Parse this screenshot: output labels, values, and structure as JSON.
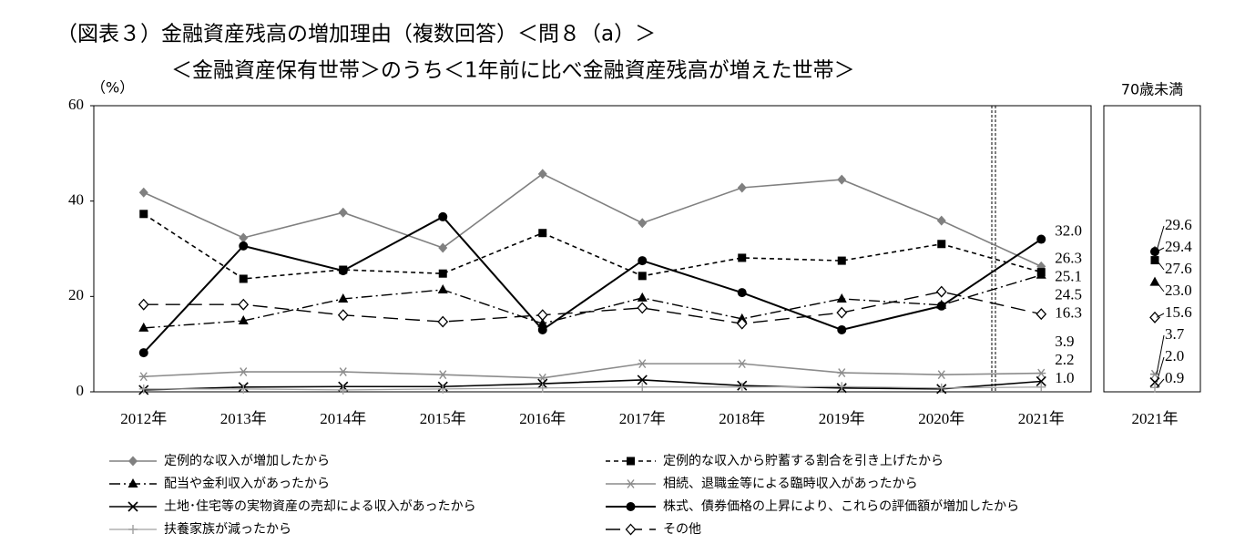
{
  "chart_data": {
    "type": "line",
    "title": "（図表３）金融資産残高の増加理由（複数回答）＜問８（a）＞",
    "subtitle": "＜金融資産保有世帯＞のうち＜1年前に比べ金融資産残高が増えた世帯＞",
    "y_label": "（%）",
    "categories": [
      "2012年",
      "2013年",
      "2014年",
      "2015年",
      "2016年",
      "2017年",
      "2018年",
      "2019年",
      "2020年",
      "2021年"
    ],
    "sub_panel_title": "70歳未満",
    "sub_categories": [
      "2021年"
    ],
    "ylim": [
      0,
      60
    ],
    "yticks": [
      0,
      20,
      40,
      60
    ],
    "grid": false,
    "series": [
      {
        "name": "定例的な収入が増加したから",
        "color": "#808080",
        "dash": "",
        "width": 1.6,
        "marker": "diamond",
        "values": [
          41.8,
          32.3,
          37.6,
          30.2,
          45.7,
          35.4,
          42.8,
          44.5,
          35.9,
          26.3
        ],
        "value_labels": [
          null,
          null,
          null,
          null,
          null,
          null,
          null,
          null,
          null,
          "26.3"
        ],
        "sub_values": [
          29.6
        ],
        "sub_value_labels": [
          "29.6"
        ]
      },
      {
        "name": "定例的な収入から貯蓄する割合を引き上げたから",
        "color": "#000000",
        "dash": "5,4",
        "width": 1.6,
        "marker": "square",
        "values": [
          37.3,
          23.7,
          25.6,
          24.8,
          33.3,
          24.3,
          28.1,
          27.5,
          31.0,
          25.1
        ],
        "value_labels": [
          null,
          null,
          null,
          null,
          null,
          null,
          null,
          null,
          null,
          "25.1"
        ],
        "sub_values": [
          27.6
        ],
        "sub_value_labels": [
          "27.6"
        ]
      },
      {
        "name": "配当や金利収入があったから",
        "color": "#000000",
        "dash": "12,4,2,4",
        "width": 1.4,
        "marker": "triangle",
        "values": [
          13.4,
          14.9,
          19.5,
          21.4,
          14.3,
          19.7,
          15.3,
          19.5,
          18.2,
          24.5
        ],
        "value_labels": [
          null,
          null,
          null,
          null,
          null,
          null,
          null,
          null,
          null,
          "24.5"
        ],
        "sub_values": [
          23.0
        ],
        "sub_value_labels": [
          "23.0"
        ]
      },
      {
        "name": "相続、退職金等による臨時収入があったから",
        "color": "#8c8c8c",
        "dash": "",
        "width": 1.6,
        "marker": "asterisk",
        "values": [
          3.2,
          4.2,
          4.2,
          3.6,
          2.9,
          5.9,
          5.9,
          4.0,
          3.6,
          3.9
        ],
        "value_labels": [
          null,
          null,
          null,
          null,
          null,
          null,
          null,
          null,
          null,
          "3.9"
        ],
        "sub_values": [
          3.7
        ],
        "sub_value_labels": [
          "3.7"
        ]
      },
      {
        "name": "土地･住宅等の実物資産の売却による収入があったから",
        "color": "#000000",
        "dash": "",
        "width": 1.6,
        "marker": "x",
        "values": [
          0.4,
          1.0,
          1.1,
          1.1,
          1.7,
          2.5,
          1.3,
          0.8,
          0.6,
          2.2
        ],
        "value_labels": [
          null,
          null,
          null,
          null,
          null,
          null,
          null,
          null,
          null,
          "2.2"
        ],
        "sub_values": [
          2.0
        ],
        "sub_value_labels": [
          "2.0"
        ]
      },
      {
        "name": "株式、債券価格の上昇により、これらの評価額が増加したから",
        "color": "#000000",
        "dash": "",
        "width": 2,
        "marker": "circle",
        "values": [
          8.2,
          30.6,
          25.4,
          36.7,
          13.0,
          27.5,
          20.8,
          13.0,
          18.0,
          32.0
        ],
        "value_labels": [
          null,
          null,
          null,
          null,
          null,
          null,
          null,
          null,
          null,
          "32.0"
        ],
        "sub_values": [
          29.4
        ],
        "sub_value_labels": [
          "29.4"
        ]
      },
      {
        "name": "扶養家族が減ったから",
        "color": "#a0a0a0",
        "dash": "",
        "width": 1.2,
        "marker": "plus",
        "values": [
          0.6,
          0.6,
          0.4,
          0.6,
          0.8,
          1.0,
          1.0,
          1.1,
          0.8,
          1.0
        ],
        "value_labels": [
          null,
          null,
          null,
          null,
          null,
          null,
          null,
          null,
          null,
          "1.0"
        ],
        "sub_values": [
          0.9
        ],
        "sub_value_labels": [
          "0.9"
        ]
      },
      {
        "name": "その他",
        "color": "#000000",
        "dash": "16,8",
        "width": 1.4,
        "marker": "open-diamond",
        "values": [
          18.3,
          18.3,
          16.1,
          14.7,
          16.1,
          17.6,
          14.3,
          16.6,
          21.0,
          16.3
        ],
        "value_labels": [
          null,
          null,
          null,
          null,
          null,
          null,
          null,
          null,
          null,
          "16.3"
        ],
        "sub_values": [
          15.6
        ],
        "sub_value_labels": [
          "15.6"
        ]
      }
    ]
  }
}
